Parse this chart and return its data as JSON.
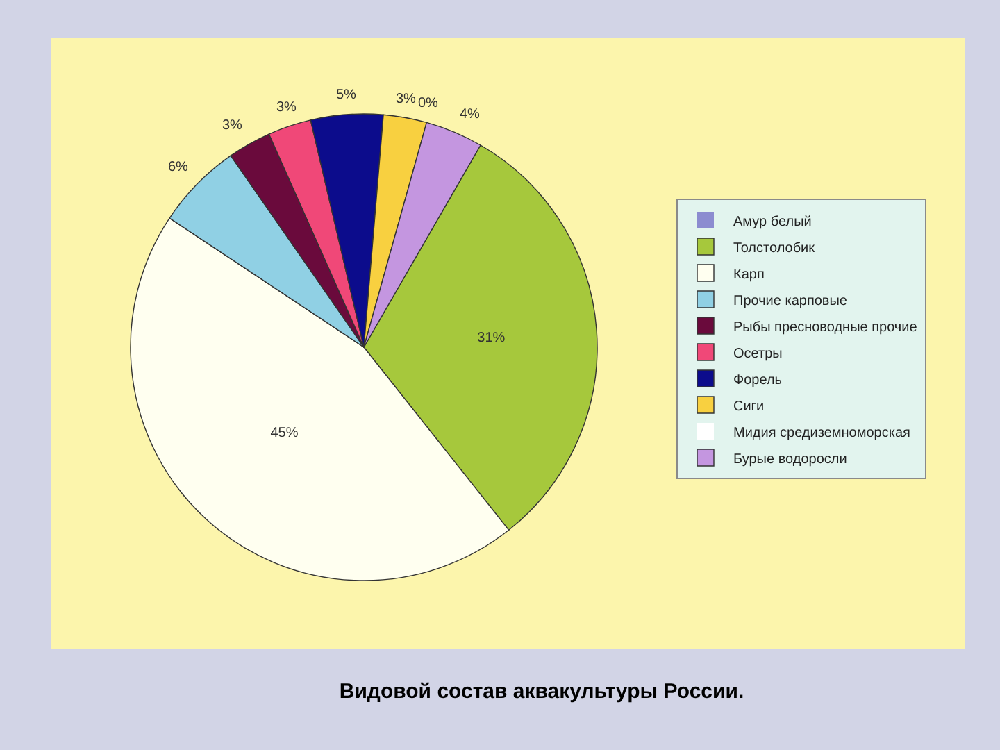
{
  "chart_data": {
    "type": "pie",
    "title": "Видовой состав аквакультуры России.",
    "categories": [
      "Амур белый",
      "Толстолобик",
      "Карп",
      "Прочие карповые",
      "Рыбы пресноводные прочие",
      "Осетры",
      "Форель",
      "Сиги",
      "Мидия средиземноморская",
      "Бурые водоросли"
    ],
    "values": [
      0,
      31,
      45,
      6,
      3,
      3,
      5,
      3,
      0,
      4
    ],
    "colors": [
      "#8c8cd0",
      "#a6c83c",
      "#fffff0",
      "#90d0e4",
      "#6a0a3c",
      "#f04878",
      "#0c0c8c",
      "#f8d040",
      "#ffffff",
      "#c496e0"
    ],
    "value_labels": [
      null,
      "31%",
      "45%",
      "6%",
      "3%",
      "3%",
      "5%",
      "3%",
      "0%",
      "4%"
    ],
    "legend": "right"
  }
}
